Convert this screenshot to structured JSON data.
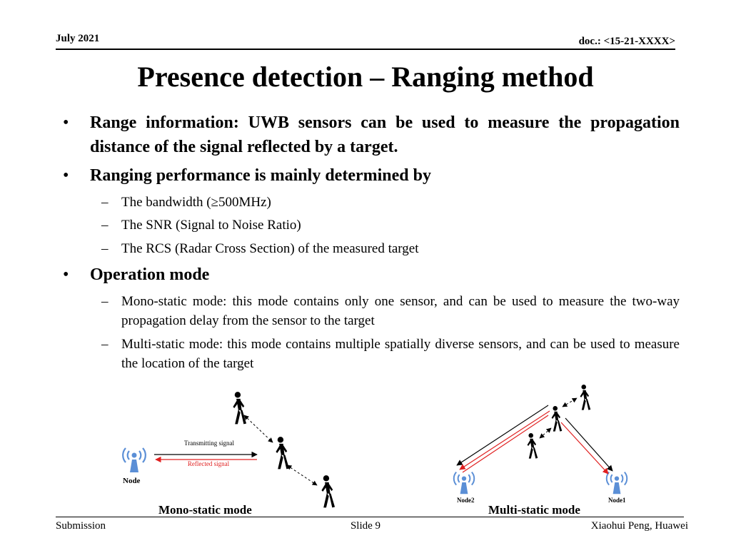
{
  "header": {
    "date": "July 2021",
    "doc": "doc.: <15-21-XXXX>"
  },
  "title": "Presence detection – Ranging method",
  "bullets": [
    {
      "text": "Range information: UWB sensors can be used to measure the propagation distance of the signal reflected by a target."
    },
    {
      "text": "Ranging performance is mainly determined by",
      "sub": [
        "The bandwidth (≥500MHz)",
        "The SNR (Signal to Noise Ratio)",
        "The RCS (Radar Cross Section) of the measured target"
      ]
    },
    {
      "text": "Operation mode",
      "sub": [
        "Mono-static mode:  this mode contains only one sensor, and can be used to measure the two-way propagation delay from the sensor to the target",
        "Multi-static mode: this mode contains multiple spatially diverse sensors, and can be used to measure the location of the target"
      ]
    }
  ],
  "figure_mono": {
    "node_label": "Node",
    "transmit_label": "Transmitting signal",
    "reflect_label": "Reflected signal",
    "caption": "Mono-static mode"
  },
  "figure_multi": {
    "node2_label": "Node2",
    "node1_label": "Node1",
    "caption": "Multi-static mode"
  },
  "footer": {
    "left": "Submission",
    "center": "Slide 9",
    "right": "Xiaohui Peng, Huawei"
  },
  "colors": {
    "antenna": "#5b8fd6",
    "reflected": "#e02020"
  }
}
